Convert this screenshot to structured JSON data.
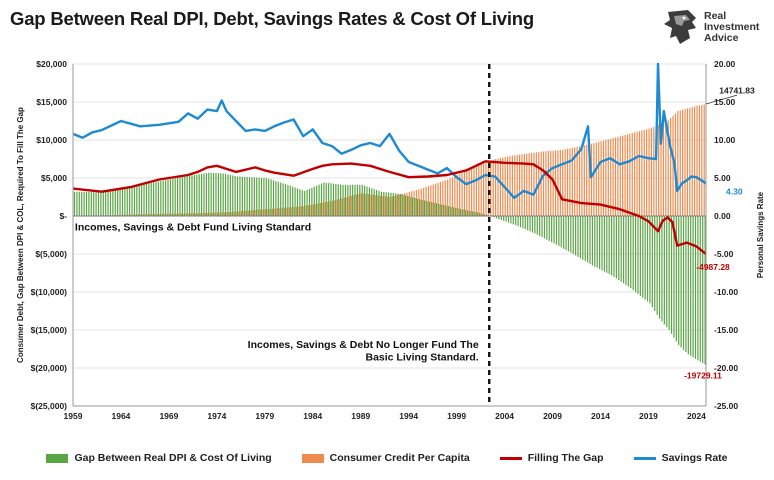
{
  "colors": {
    "gap": "#5aa544",
    "credit": "#ef8b4e",
    "filling": "#c00000",
    "savings": "#1d8ad1"
  },
  "logo": {
    "line1": "Real",
    "line2": "Investment",
    "line3": "Advice"
  },
  "chart_data": {
    "type": "bar",
    "title": "Gap Between Real DPI, Debt, Savings Rates & Cost Of Living",
    "ylabel": "Consumer Debt, Gap Between DPI & COL, Required To Fill The Gap",
    "y2label": "Personal Savings Rate",
    "xlim": [
      1959,
      2025
    ],
    "ylim": [
      -25000,
      20000
    ],
    "y2lim": [
      -25,
      20
    ],
    "x_ticks": [
      "1959",
      "1964",
      "1969",
      "1974",
      "1979",
      "1984",
      "1989",
      "1994",
      "1999",
      "2004",
      "2009",
      "2014",
      "2019",
      "2024"
    ],
    "y_ticks": [
      "$20,000",
      "$15,000",
      "$10,000",
      "$5,000",
      "$-",
      "$(5,000)",
      "$(10,000)",
      "$(15,000)",
      "$(20,000)",
      "$(25,000)"
    ],
    "y2_ticks": [
      "20.00",
      "15.00",
      "10.00",
      "5.00",
      "0.00",
      "-5.00",
      "-10.00",
      "-15.00",
      "-20.00",
      "-25.00"
    ],
    "divider_x": 2002.4,
    "annotations": [
      {
        "text": "Incomes, Savings & Debt Fund Living Standard"
      },
      {
        "text": "Incomes, Savings & Debt No Longer Fund The"
      },
      {
        "text": "Basic Living Standard."
      }
    ],
    "end_labels": {
      "credit": "14741.83",
      "savings": "4.30",
      "filling": "-4987.28",
      "gap": "-19729.11"
    },
    "legend": [
      {
        "name": "Gap Between Real DPI & Cost Of Living",
        "kind": "bar",
        "series": "gap"
      },
      {
        "name": "Consumer Credit Per Capita",
        "kind": "bar",
        "series": "credit"
      },
      {
        "name": "Filling The Gap",
        "kind": "line",
        "series": "filling"
      },
      {
        "name": "Savings Rate",
        "kind": "line",
        "series": "savings"
      }
    ],
    "series": {
      "gap": {
        "x": [
          1959,
          1962,
          1965,
          1968,
          1971,
          1973,
          1974.5,
          1976,
          1979,
          1981,
          1983,
          1985,
          1987,
          1989,
          1991,
          1993,
          1995,
          1997,
          1999,
          2001,
          2002.4,
          2003,
          2005,
          2007,
          2009,
          2011,
          2013,
          2015,
          2017,
          2019,
          2020,
          2021,
          2022,
          2023,
          2024,
          2025
        ],
        "y": [
          3200,
          3100,
          3800,
          4600,
          5300,
          5700,
          5600,
          5200,
          5000,
          4200,
          3300,
          4400,
          4100,
          4100,
          3200,
          2900,
          2200,
          1600,
          1000,
          500,
          0,
          -300,
          -1200,
          -2300,
          -3600,
          -5000,
          -6500,
          -7800,
          -9500,
          -11500,
          -13500,
          -15000,
          -17000,
          -18200,
          -19000,
          -19729
        ]
      },
      "credit": {
        "x": [
          1959,
          1963,
          1967,
          1971,
          1975,
          1979,
          1983,
          1986,
          1989,
          1992,
          1995,
          1998,
          2001,
          2003,
          2005,
          2008,
          2010,
          2013,
          2016,
          2019,
          2020,
          2021,
          2022,
          2024,
          2025
        ],
        "y": [
          0,
          100,
          250,
          350,
          500,
          900,
          1300,
          2000,
          3000,
          2500,
          3500,
          4800,
          6500,
          7500,
          8000,
          8500,
          8700,
          9500,
          10500,
          11500,
          12000,
          12600,
          13800,
          14500,
          14742
        ]
      },
      "filling": {
        "x": [
          1959,
          1962,
          1965,
          1968,
          1971,
          1972,
          1973,
          1974,
          1975,
          1976,
          1978,
          1979,
          1980,
          1982,
          1984,
          1985,
          1986,
          1988,
          1990,
          1992,
          1994,
          1996,
          1998,
          2000,
          2002,
          2004,
          2006,
          2007,
          2008,
          2009,
          2010,
          2012,
          2014,
          2016,
          2018,
          2019,
          2020,
          2020.5,
          2021,
          2021.5,
          2022,
          2023,
          2024,
          2025
        ],
        "y": [
          3600,
          3200,
          3800,
          4800,
          5400,
          5800,
          6400,
          6600,
          6200,
          5800,
          6400,
          6000,
          5700,
          5300,
          6200,
          6600,
          6800,
          6900,
          6600,
          5800,
          5100,
          5200,
          5400,
          6000,
          7200,
          7000,
          6900,
          6800,
          6000,
          4800,
          2200,
          1700,
          1500,
          900,
          0,
          -700,
          -2000,
          -600,
          -200,
          -800,
          -3900,
          -3500,
          -4000,
          -4987
        ]
      },
      "savings": {
        "x": [
          1959,
          1960,
          1961,
          1962,
          1964,
          1966,
          1968,
          1970,
          1971,
          1972,
          1973,
          1974,
          1974.5,
          1975,
          1976,
          1977,
          1978,
          1979,
          1980,
          1981,
          1982,
          1983,
          1984,
          1985,
          1986,
          1987,
          1988,
          1989,
          1990,
          1991,
          1992,
          1993,
          1994,
          1995,
          1996,
          1997,
          1998,
          1999,
          2000,
          2001,
          2002,
          2003,
          2004,
          2005,
          2006,
          2007,
          2008,
          2009,
          2010,
          2011,
          2012,
          2012.7,
          2013,
          2014,
          2015,
          2016,
          2017,
          2018,
          2019,
          2019.8,
          2020,
          2020.3,
          2020.6,
          2021,
          2021.3,
          2021.7,
          2022,
          2022.5,
          2023,
          2023.5,
          2024,
          2025
        ],
        "y": [
          10.8,
          10.3,
          11,
          11.3,
          12.5,
          11.8,
          12,
          12.4,
          13.5,
          12.8,
          14,
          13.8,
          15.2,
          13.8,
          12.5,
          11.2,
          11.4,
          11.2,
          11.8,
          12.3,
          12.7,
          10.5,
          11.4,
          9.6,
          9.2,
          8.2,
          8.7,
          9.3,
          9.6,
          9.2,
          10.8,
          8.6,
          7.1,
          6.6,
          6.1,
          5.6,
          6.3,
          5.1,
          4.2,
          4.7,
          5.4,
          5.2,
          3.8,
          2.4,
          3.3,
          2.8,
          5.3,
          6.3,
          6.8,
          7.3,
          8.8,
          11.8,
          5.1,
          7.1,
          7.6,
          6.8,
          7.2,
          7.9,
          7.6,
          7.5,
          20,
          9.5,
          13.8,
          11,
          9,
          7,
          3.3,
          4.3,
          4.7,
          5.2,
          5.1,
          4.3
        ]
      }
    }
  }
}
